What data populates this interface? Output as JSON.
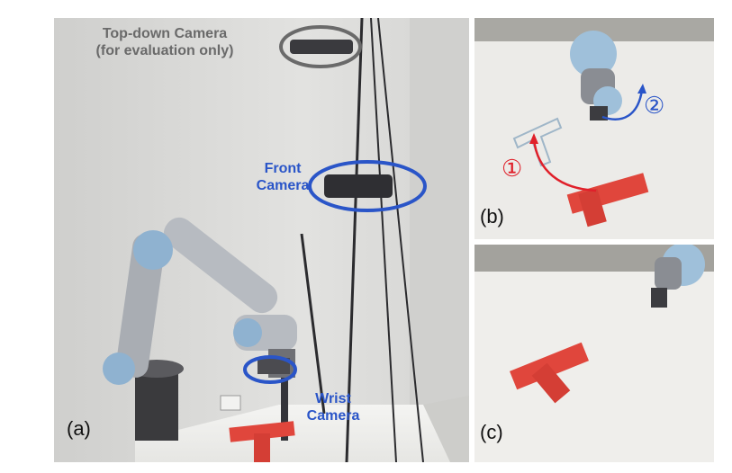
{
  "panels": {
    "a": {
      "label": "(a)",
      "top_camera_label": [
        "Top-down Camera",
        "(for evaluation only)"
      ],
      "front_camera_label": [
        "Front",
        "Camera"
      ],
      "wrist_camera_label": [
        "Wrist",
        "Camera"
      ]
    },
    "b": {
      "label": "(b)",
      "step1": "①",
      "step2": "②"
    },
    "c": {
      "label": "(c)"
    }
  },
  "colors": {
    "gray_label": "#6a6a6a",
    "blue_label": "#2a55c8",
    "red_arrow": "#e0202a",
    "t_block": "#e0463c"
  }
}
